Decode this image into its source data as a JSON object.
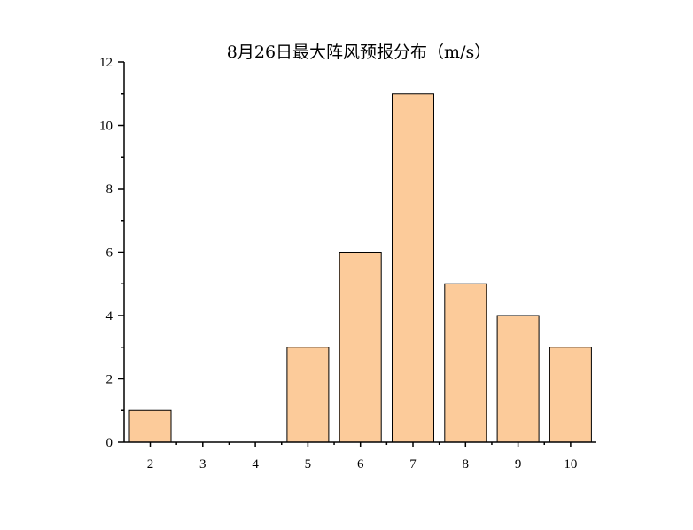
{
  "chart_data": {
    "type": "bar",
    "title": "8月26日最大阵风预报分布（m/s）",
    "xlabel": "",
    "ylabel": "",
    "categories": [
      "2",
      "3",
      "4",
      "5",
      "6",
      "7",
      "8",
      "9",
      "10"
    ],
    "values": [
      1,
      0,
      0,
      3,
      6,
      11,
      5,
      4,
      3
    ],
    "ylim": [
      0,
      12
    ],
    "yticks": [
      "0",
      "2",
      "4",
      "6",
      "8",
      "10",
      "12"
    ],
    "bar_color": "#FCCB9A",
    "grid": false,
    "legend": "none"
  }
}
